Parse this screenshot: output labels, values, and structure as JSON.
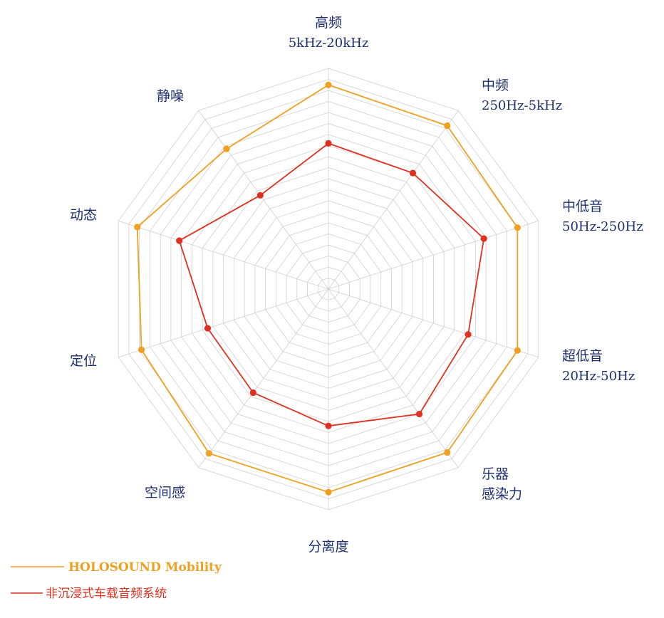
{
  "chart_data": {
    "type": "radar",
    "title": "",
    "axes": [
      {
        "name": "高频",
        "sub": "5kHz-20kHz"
      },
      {
        "name": "中频",
        "sub": "250Hz-5kHz"
      },
      {
        "name": "中低音",
        "sub": "50Hz-250Hz"
      },
      {
        "name": "超低音",
        "sub": "20Hz-50Hz"
      },
      {
        "name": "乐器",
        "sub": "感染力"
      },
      {
        "name": "分离度",
        "sub": ""
      },
      {
        "name": "空间感",
        "sub": ""
      },
      {
        "name": "定位",
        "sub": ""
      },
      {
        "name": "动态",
        "sub": ""
      },
      {
        "name": "静噪",
        "sub": ""
      }
    ],
    "range": [
      0,
      20
    ],
    "grid_levels": 20,
    "series": [
      {
        "name": "HOLOSOUND Mobility",
        "color": "#f0a020",
        "values": [
          18.5,
          18.3,
          18.0,
          18.0,
          18.3,
          18.4,
          18.4,
          17.8,
          18.2,
          15.7
        ]
      },
      {
        "name": "非沉浸式车载音频系统",
        "color": "#e03020",
        "values": [
          13.2,
          13.0,
          14.8,
          13.3,
          14.0,
          12.4,
          11.6,
          11.5,
          14.2,
          10.5
        ]
      }
    ],
    "legend_position": "bottom-left"
  }
}
